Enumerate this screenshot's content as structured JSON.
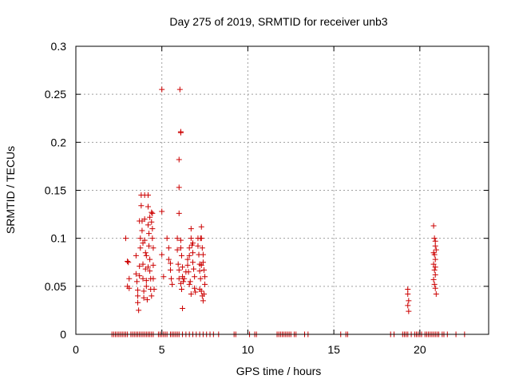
{
  "chart_data": {
    "type": "scatter",
    "title": "Day 275 of 2019, SRMTID for receiver unb3",
    "xlabel": "GPS time / hours",
    "ylabel": "SRMTID / TECUs",
    "xlim": [
      0,
      24
    ],
    "ylim": [
      0,
      0.3
    ],
    "xticks": [
      0,
      5,
      10,
      15,
      20
    ],
    "xtick_labels": [
      "0",
      "5",
      "10",
      "15",
      "20"
    ],
    "yticks": [
      0,
      0.05,
      0.1,
      0.15,
      0.2,
      0.25,
      0.3
    ],
    "ytick_labels": [
      "0",
      "0.05",
      "0.1",
      "0.15",
      "0.2",
      "0.25",
      "0.3"
    ],
    "grid": true,
    "marker": "+",
    "color": "#cc0000",
    "series": [
      {
        "name": "SRMTID",
        "points": [
          [
            2.1,
            0
          ],
          [
            2.2,
            0
          ],
          [
            2.3,
            0
          ],
          [
            2.4,
            0
          ],
          [
            2.5,
            0
          ],
          [
            2.6,
            0
          ],
          [
            2.7,
            0
          ],
          [
            2.8,
            0
          ],
          [
            2.9,
            0
          ],
          [
            3.0,
            0
          ],
          [
            3.2,
            0
          ],
          [
            3.3,
            0
          ],
          [
            3.4,
            0
          ],
          [
            3.5,
            0
          ],
          [
            3.6,
            0
          ],
          [
            3.7,
            0
          ],
          [
            3.8,
            0
          ],
          [
            3.9,
            0
          ],
          [
            4.0,
            0
          ],
          [
            4.1,
            0
          ],
          [
            4.2,
            0
          ],
          [
            4.3,
            0
          ],
          [
            4.4,
            0
          ],
          [
            4.5,
            0
          ],
          [
            4.8,
            0
          ],
          [
            4.9,
            0
          ],
          [
            5.0,
            0
          ],
          [
            5.1,
            0
          ],
          [
            5.2,
            0
          ],
          [
            5.3,
            0
          ],
          [
            5.5,
            0
          ],
          [
            5.6,
            0
          ],
          [
            5.7,
            0
          ],
          [
            5.8,
            0
          ],
          [
            5.9,
            0
          ],
          [
            6.0,
            0
          ],
          [
            6.2,
            0
          ],
          [
            6.4,
            0
          ],
          [
            6.6,
            0
          ],
          [
            6.8,
            0
          ],
          [
            7.0,
            0
          ],
          [
            7.2,
            0
          ],
          [
            7.4,
            0
          ],
          [
            7.6,
            0
          ],
          [
            7.8,
            0
          ],
          [
            8.0,
            0
          ],
          [
            8.3,
            0
          ],
          [
            9.2,
            0
          ],
          [
            9.3,
            0
          ],
          [
            10.1,
            0
          ],
          [
            10.4,
            0
          ],
          [
            10.5,
            0
          ],
          [
            11.7,
            0
          ],
          [
            11.8,
            0
          ],
          [
            11.9,
            0
          ],
          [
            12.0,
            0
          ],
          [
            12.1,
            0
          ],
          [
            12.2,
            0
          ],
          [
            12.3,
            0
          ],
          [
            12.4,
            0
          ],
          [
            12.5,
            0
          ],
          [
            12.7,
            0
          ],
          [
            12.8,
            0
          ],
          [
            13.3,
            0
          ],
          [
            13.5,
            0
          ],
          [
            15.4,
            0
          ],
          [
            15.7,
            0
          ],
          [
            15.8,
            0
          ],
          [
            18.3,
            0
          ],
          [
            18.5,
            0
          ],
          [
            19.0,
            0
          ],
          [
            19.1,
            0
          ],
          [
            19.2,
            0
          ],
          [
            19.3,
            0
          ],
          [
            19.5,
            0
          ],
          [
            19.7,
            0
          ],
          [
            19.8,
            0
          ],
          [
            19.9,
            0
          ],
          [
            20.0,
            0
          ],
          [
            20.1,
            0
          ],
          [
            20.3,
            0
          ],
          [
            20.4,
            0
          ],
          [
            20.5,
            0
          ],
          [
            20.6,
            0
          ],
          [
            20.7,
            0
          ],
          [
            20.8,
            0
          ],
          [
            20.9,
            0
          ],
          [
            21.0,
            0
          ],
          [
            21.1,
            0
          ],
          [
            21.3,
            0
          ],
          [
            21.4,
            0
          ],
          [
            21.6,
            0
          ],
          [
            22.1,
            0
          ],
          [
            22.6,
            0
          ],
          [
            2.9,
            0.1
          ],
          [
            3.0,
            0.076
          ],
          [
            3.05,
            0.075
          ],
          [
            3.0,
            0.05
          ],
          [
            3.1,
            0.048
          ],
          [
            3.1,
            0.058
          ],
          [
            3.5,
            0.082
          ],
          [
            3.5,
            0.063
          ],
          [
            3.55,
            0.055
          ],
          [
            3.6,
            0.046
          ],
          [
            3.6,
            0.04
          ],
          [
            3.6,
            0.033
          ],
          [
            3.65,
            0.025
          ],
          [
            3.7,
            0.071
          ],
          [
            3.7,
            0.061
          ],
          [
            3.75,
            0.1
          ],
          [
            3.75,
            0.09
          ],
          [
            3.8,
            0.145
          ],
          [
            3.8,
            0.134
          ],
          [
            3.85,
            0.118
          ],
          [
            3.85,
            0.108
          ],
          [
            3.9,
            0.073
          ],
          [
            3.9,
            0.058
          ],
          [
            3.95,
            0.045
          ],
          [
            3.95,
            0.038
          ],
          [
            4.0,
            0.145
          ],
          [
            4.0,
            0.12
          ],
          [
            4.0,
            0.098
          ],
          [
            4.05,
            0.085
          ],
          [
            4.05,
            0.068
          ],
          [
            4.1,
            0.056
          ],
          [
            4.1,
            0.05
          ],
          [
            4.15,
            0.036
          ],
          [
            4.2,
            0.145
          ],
          [
            4.2,
            0.133
          ],
          [
            4.2,
            0.114
          ],
          [
            4.25,
            0.105
          ],
          [
            4.25,
            0.092
          ],
          [
            4.3,
            0.078
          ],
          [
            4.3,
            0.066
          ],
          [
            4.35,
            0.058
          ],
          [
            4.35,
            0.047
          ],
          [
            4.4,
            0.127
          ],
          [
            4.4,
            0.117
          ],
          [
            4.45,
            0.11
          ],
          [
            4.45,
            0.1
          ],
          [
            4.5,
            0.09
          ],
          [
            4.5,
            0.072
          ],
          [
            4.5,
            0.058
          ],
          [
            4.55,
            0.047
          ],
          [
            4.4,
            0.04
          ],
          [
            4.45,
            0.126
          ],
          [
            4.3,
            0.122
          ],
          [
            3.7,
            0.118
          ],
          [
            3.9,
            0.095
          ],
          [
            4.1,
            0.082
          ],
          [
            4.2,
            0.07
          ],
          [
            5.0,
            0.255
          ],
          [
            5.0,
            0.128
          ],
          [
            5.0,
            0.083
          ],
          [
            5.1,
            0.06
          ],
          [
            5.3,
            0.1
          ],
          [
            5.4,
            0.09
          ],
          [
            5.4,
            0.078
          ],
          [
            5.5,
            0.074
          ],
          [
            5.5,
            0.067
          ],
          [
            5.55,
            0.058
          ],
          [
            5.6,
            0.052
          ],
          [
            5.9,
            0.1
          ],
          [
            5.9,
            0.088
          ],
          [
            5.95,
            0.073
          ],
          [
            6.0,
            0.067
          ],
          [
            6.0,
            0.058
          ],
          [
            6.05,
            0.255
          ],
          [
            6.1,
            0.211
          ],
          [
            6.1,
            0.21
          ],
          [
            6.0,
            0.182
          ],
          [
            6.0,
            0.153
          ],
          [
            6.0,
            0.126
          ],
          [
            6.1,
            0.098
          ],
          [
            6.1,
            0.09
          ],
          [
            6.15,
            0.082
          ],
          [
            6.2,
            0.07
          ],
          [
            6.2,
            0.06
          ],
          [
            6.25,
            0.055
          ],
          [
            6.1,
            0.053
          ],
          [
            6.15,
            0.047
          ],
          [
            6.2,
            0.027
          ],
          [
            6.3,
            0.058
          ],
          [
            6.4,
            0.065
          ],
          [
            6.5,
            0.078
          ],
          [
            6.5,
            0.072
          ],
          [
            6.55,
            0.065
          ],
          [
            6.6,
            0.09
          ],
          [
            6.6,
            0.082
          ],
          [
            6.65,
            0.055
          ],
          [
            6.7,
            0.11
          ],
          [
            6.7,
            0.1
          ],
          [
            6.75,
            0.093
          ],
          [
            6.8,
            0.085
          ],
          [
            6.8,
            0.075
          ],
          [
            6.85,
            0.068
          ],
          [
            6.9,
            0.06
          ],
          [
            6.9,
            0.048
          ],
          [
            6.95,
            0.044
          ],
          [
            6.7,
            0.042
          ],
          [
            6.6,
            0.052
          ],
          [
            6.8,
            0.095
          ],
          [
            7.1,
            0.1
          ],
          [
            7.1,
            0.092
          ],
          [
            7.15,
            0.083
          ],
          [
            7.2,
            0.073
          ],
          [
            7.2,
            0.066
          ],
          [
            7.25,
            0.058
          ],
          [
            7.3,
            0.112
          ],
          [
            7.3,
            0.1
          ],
          [
            7.35,
            0.09
          ],
          [
            7.4,
            0.083
          ],
          [
            7.4,
            0.075
          ],
          [
            7.45,
            0.067
          ],
          [
            7.5,
            0.06
          ],
          [
            7.5,
            0.052
          ],
          [
            7.3,
            0.045
          ],
          [
            7.35,
            0.04
          ],
          [
            7.4,
            0.035
          ],
          [
            7.45,
            0.042
          ],
          [
            7.2,
            0.047
          ],
          [
            7.25,
            0.1
          ],
          [
            7.3,
            0.072
          ],
          [
            19.3,
            0.047
          ],
          [
            19.3,
            0.042
          ],
          [
            19.35,
            0.035
          ],
          [
            19.3,
            0.03
          ],
          [
            19.35,
            0.024
          ],
          [
            20.8,
            0.113
          ],
          [
            20.85,
            0.1
          ],
          [
            20.9,
            0.097
          ],
          [
            20.9,
            0.092
          ],
          [
            20.95,
            0.088
          ],
          [
            20.85,
            0.083
          ],
          [
            20.9,
            0.078
          ],
          [
            20.8,
            0.073
          ],
          [
            20.85,
            0.067
          ],
          [
            20.9,
            0.062
          ],
          [
            20.8,
            0.057
          ],
          [
            20.85,
            0.052
          ],
          [
            20.9,
            0.048
          ],
          [
            20.95,
            0.042
          ],
          [
            20.8,
            0.085
          ],
          [
            20.9,
            0.07
          ]
        ]
      }
    ]
  }
}
